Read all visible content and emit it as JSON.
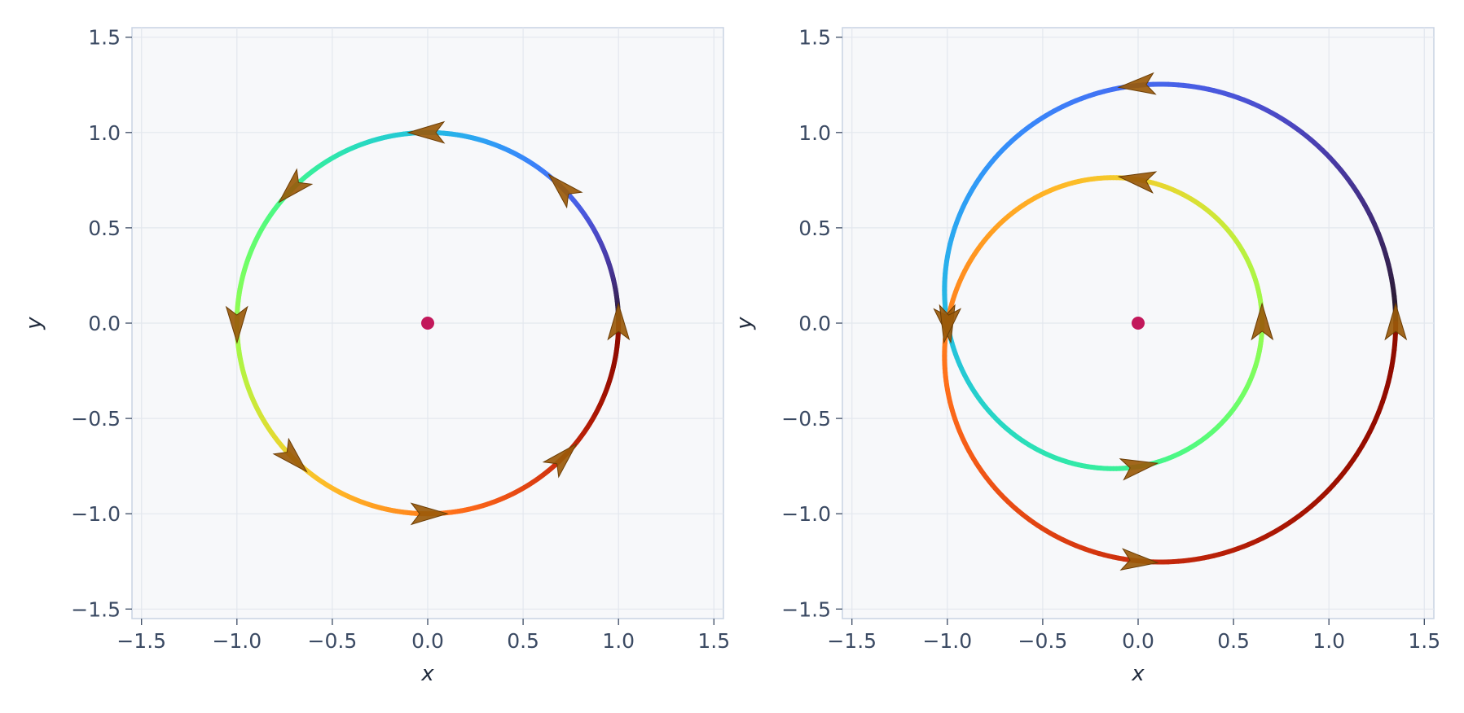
{
  "chart_data": [
    {
      "type": "line",
      "title": "",
      "xlabel": "x",
      "ylabel": "y",
      "xlim": [
        -1.55,
        1.55
      ],
      "ylim": [
        -1.55,
        1.55
      ],
      "xticks": [
        -1.5,
        -1.0,
        -0.5,
        0.0,
        0.5,
        1.0,
        1.5
      ],
      "yticks": [
        -1.5,
        -1.0,
        -0.5,
        0.0,
        0.5,
        1.0,
        1.5
      ],
      "tick_labels": [
        "−1.5",
        "−1.0",
        "−0.5",
        "0.0",
        "0.5",
        "1.0",
        "1.5"
      ],
      "grid": true,
      "center_point": {
        "x": 0.0,
        "y": 0.0,
        "color": "#c2185b"
      },
      "curve": {
        "kind": "circle",
        "parametric": "x = cos(t), y = sin(t), t from 0 to 2pi",
        "radius": 1.0,
        "color_scale": "turbo (t = 0 dark blue → t = 2pi dark red)"
      },
      "arrows": {
        "count": 8,
        "color": "#9a5a0a",
        "positions": [
          [
            1.0,
            0.0
          ],
          [
            0.7,
            0.71
          ],
          [
            0.0,
            1.0
          ],
          [
            -0.7,
            0.71
          ],
          [
            -1.0,
            0.0
          ],
          [
            -0.71,
            -0.71
          ],
          [
            0.0,
            -1.0
          ],
          [
            0.71,
            -0.71
          ]
        ]
      }
    },
    {
      "type": "line",
      "title": "",
      "xlabel": "x",
      "ylabel": "y",
      "xlim": [
        -1.55,
        1.55
      ],
      "ylim": [
        -1.55,
        1.55
      ],
      "xticks": [
        -1.5,
        -1.0,
        -0.5,
        0.0,
        0.5,
        1.0,
        1.5
      ],
      "yticks": [
        -1.5,
        -1.0,
        -0.5,
        0.0,
        0.5,
        1.0,
        1.5
      ],
      "tick_labels": [
        "−1.5",
        "−1.0",
        "−0.5",
        "0.0",
        "0.5",
        "1.0",
        "1.5"
      ],
      "grid": true,
      "center_point": {
        "x": 0.0,
        "y": 0.0,
        "color": "#c2185b"
      },
      "curve": {
        "kind": "limacon",
        "parametric": "r = 1 + 0.35 cos(2t); x = r cos(t), y = r sin(t) / 1 + ..., t from 0 to 4pi (two loops)",
        "outer_loop": {
          "x_range": [
            -1.0,
            1.35
          ],
          "y_range": [
            -1.25,
            1.25
          ]
        },
        "inner_loop": {
          "x_range": [
            -1.0,
            0.65
          ],
          "y_range": [
            -0.75,
            0.75
          ]
        },
        "color_scale": "turbo (t = 0 dark blue → t = 4pi dark red)"
      },
      "arrows": {
        "count": 8,
        "color": "#9a5a0a",
        "positions": [
          [
            1.35,
            0.0
          ],
          [
            0.1,
            1.25
          ],
          [
            -1.0,
            0.25
          ],
          [
            -0.2,
            -0.75
          ],
          [
            0.65,
            0.0
          ],
          [
            -0.15,
            0.75
          ],
          [
            -1.0,
            -0.45
          ],
          [
            0.35,
            -1.22
          ]
        ]
      }
    }
  ]
}
